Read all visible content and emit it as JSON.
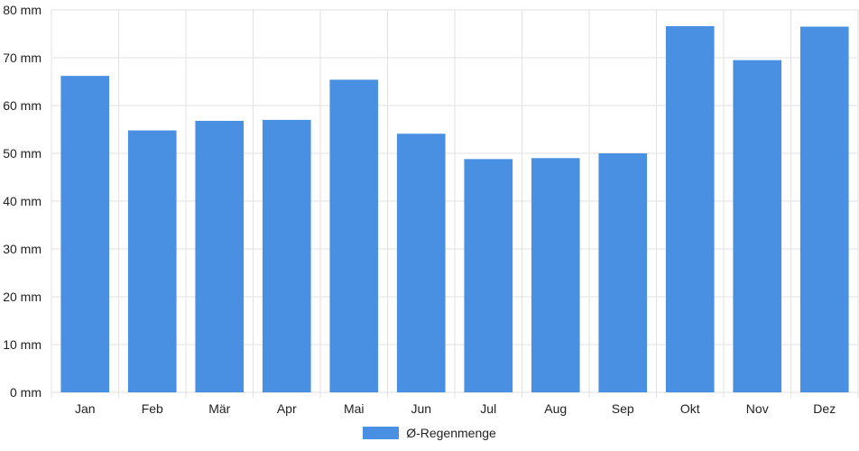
{
  "chart_data": {
    "type": "bar",
    "categories": [
      "Jan",
      "Feb",
      "Mär",
      "Apr",
      "Mai",
      "Jun",
      "Jul",
      "Aug",
      "Sep",
      "Okt",
      "Nov",
      "Dez"
    ],
    "series": [
      {
        "name": "Ø-Regenmenge",
        "values": [
          66.2,
          54.8,
          56.8,
          57.0,
          65.4,
          54.1,
          48.8,
          49.0,
          50.0,
          76.6,
          69.5,
          76.5
        ]
      }
    ],
    "yticks": [
      "0 mm",
      "10 mm",
      "20 mm",
      "30 mm",
      "40 mm",
      "50 mm",
      "60 mm",
      "70 mm",
      "80 mm"
    ],
    "ylim": [
      0,
      80
    ],
    "grid": true,
    "legend_position": "bottom",
    "bar_color": "#4a90e2",
    "grid_color": "#e2e2e2"
  }
}
